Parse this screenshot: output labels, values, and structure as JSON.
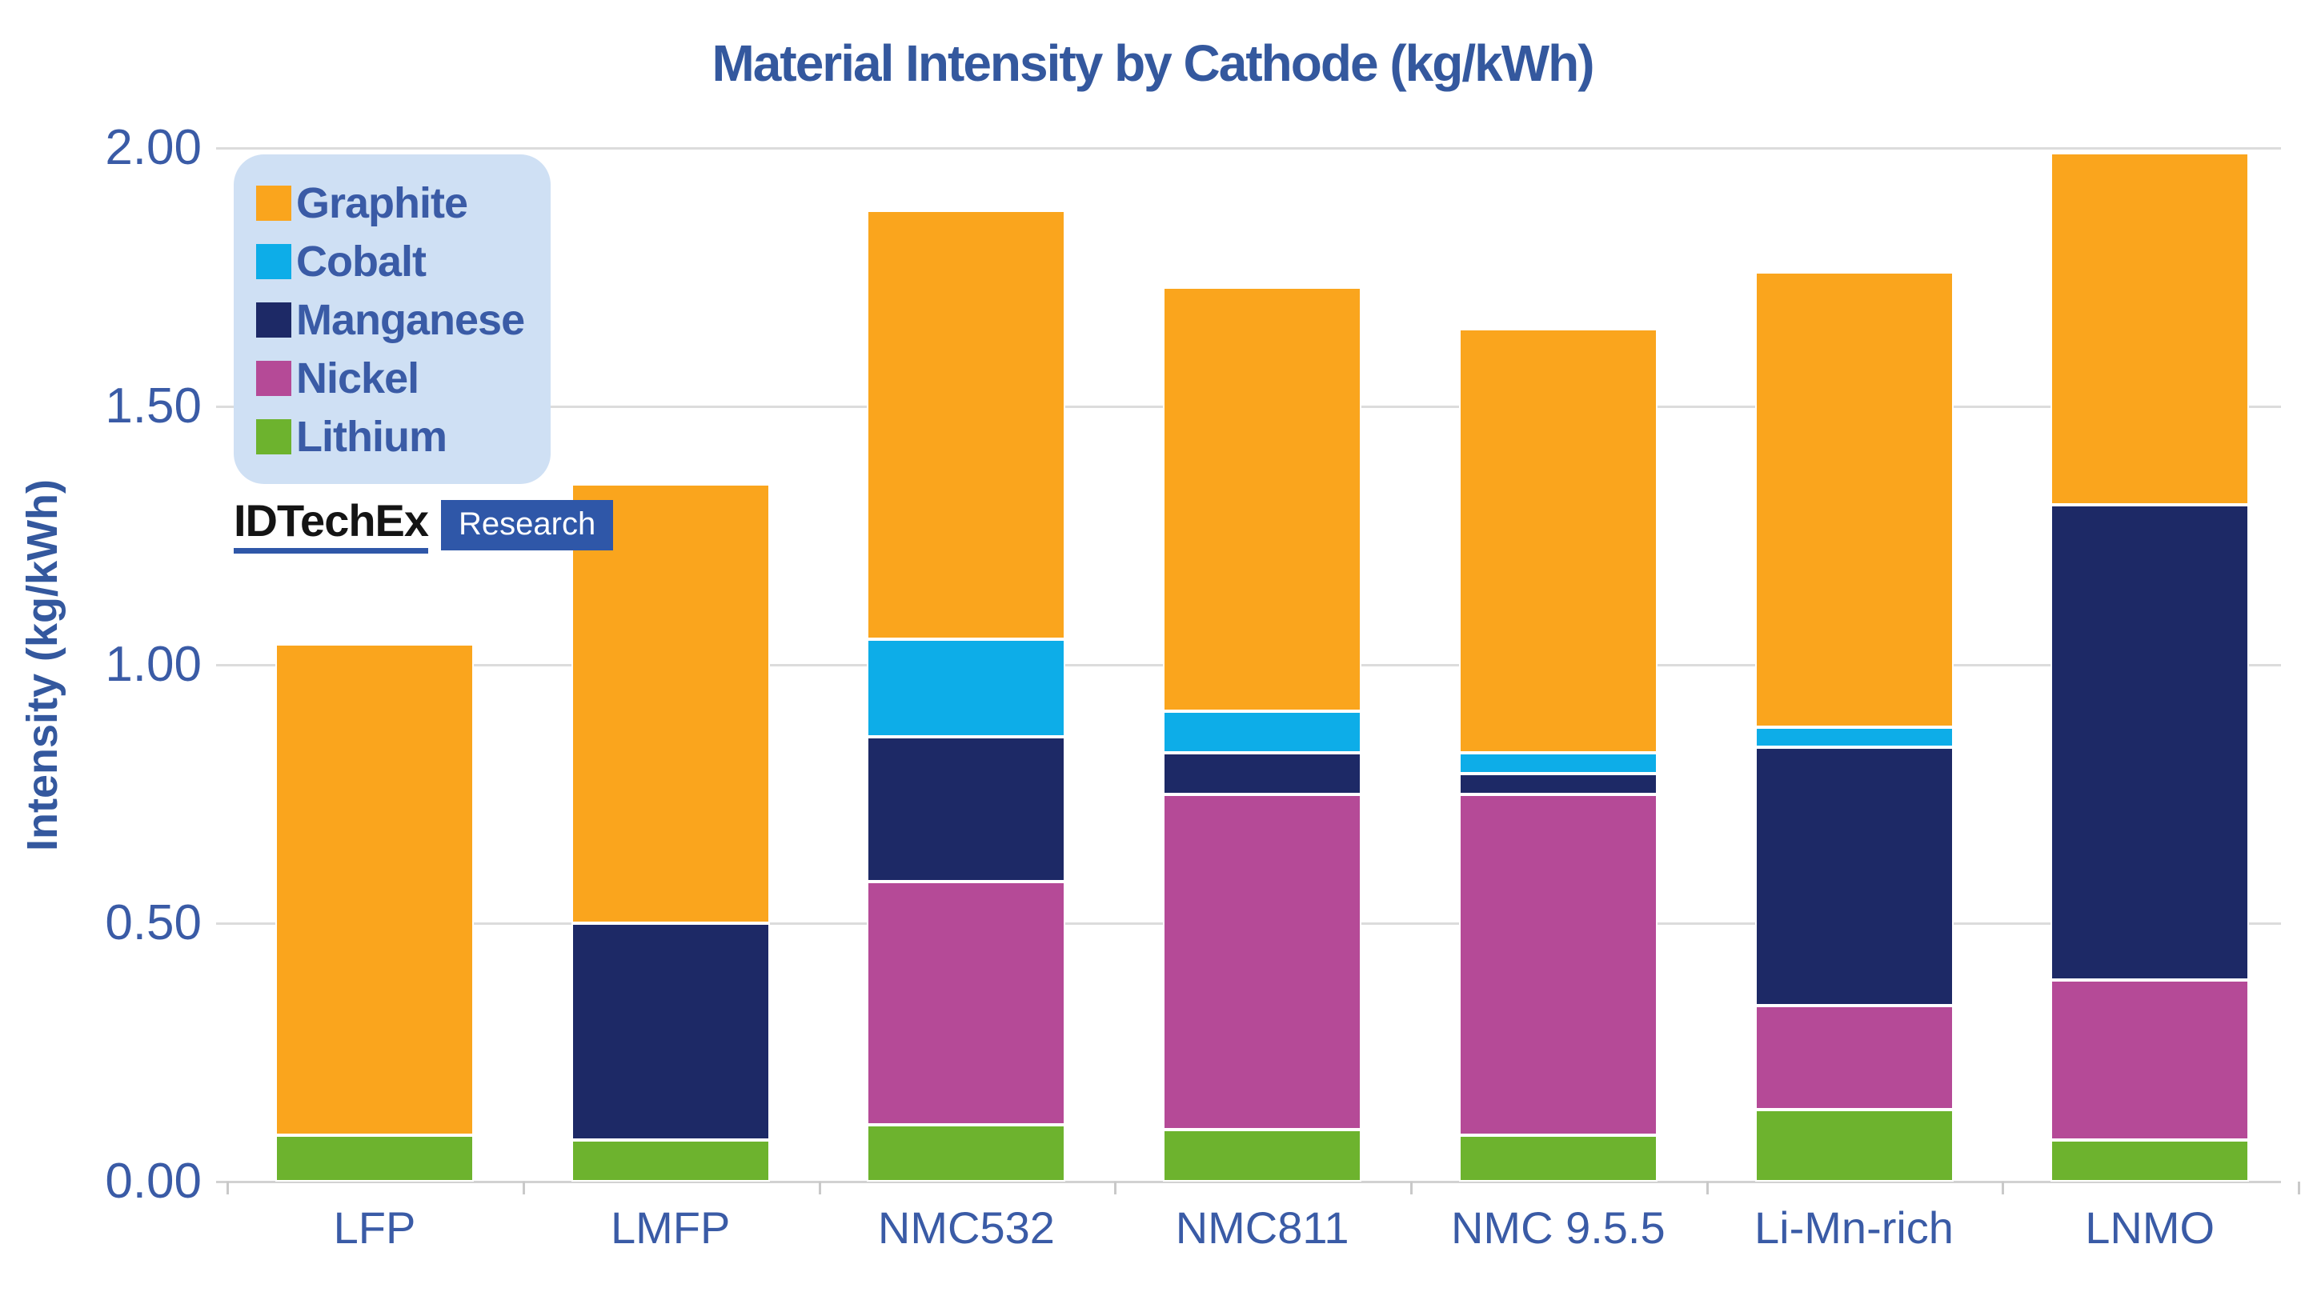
{
  "title": "Material Intensity by Cathode (kg/kWh)",
  "y_axis": {
    "label": "Intensity (kg/kWh)",
    "tick_labels": [
      "2.00",
      "1.50",
      "1.00",
      "0.50",
      "0.00"
    ],
    "tick_values": [
      2.0,
      1.5,
      1.0,
      0.5,
      0.0
    ]
  },
  "legend": {
    "items": [
      {
        "label": "Graphite",
        "color": "#FAA51D"
      },
      {
        "label": "Cobalt",
        "color": "#0DADE8"
      },
      {
        "label": "Manganese",
        "color": "#1D2966"
      },
      {
        "label": "Nickel",
        "color": "#B54A97"
      },
      {
        "label": "Lithium",
        "color": "#6DB32E"
      }
    ]
  },
  "logo": {
    "brand": "IDTechEx",
    "suffix": "Research"
  },
  "colors": {
    "title_text": "#34589E",
    "axis_text": "#3A5BA6",
    "gridline": "#DCDCDC",
    "legend_background": "#CFE0F4",
    "logo_accent": "#2F57A8",
    "segment_outline": "#FFFFFF"
  },
  "chart_data": {
    "type": "bar",
    "stacked": true,
    "title": "Material Intensity by Cathode (kg/kWh)",
    "xlabel": "",
    "ylabel": "Intensity (kg/kWh)",
    "ylim": [
      0,
      2.0
    ],
    "ytick_step": 0.5,
    "grid": true,
    "legend_position": "top-left",
    "categories": [
      "LFP",
      "LMFP",
      "NMC532",
      "NMC811",
      "NMC 9.5.5",
      "Li-Mn-rich",
      "LNMO"
    ],
    "stack_order_bottom_up": [
      "Lithium",
      "Nickel",
      "Manganese",
      "Cobalt",
      "Graphite"
    ],
    "series": [
      {
        "name": "Graphite",
        "color": "#FAA51D",
        "values": [
          0.95,
          0.85,
          0.83,
          0.82,
          0.82,
          0.88,
          0.68
        ]
      },
      {
        "name": "Cobalt",
        "color": "#0DADE8",
        "values": [
          0.0,
          0.0,
          0.19,
          0.08,
          0.04,
          0.04,
          0.0
        ]
      },
      {
        "name": "Manganese",
        "color": "#1D2966",
        "values": [
          0.0,
          0.42,
          0.28,
          0.08,
          0.04,
          0.5,
          0.92
        ]
      },
      {
        "name": "Nickel",
        "color": "#B54A97",
        "values": [
          0.0,
          0.0,
          0.47,
          0.65,
          0.66,
          0.2,
          0.31
        ]
      },
      {
        "name": "Lithium",
        "color": "#6DB32E",
        "values": [
          0.09,
          0.08,
          0.11,
          0.1,
          0.09,
          0.14,
          0.08
        ]
      }
    ],
    "totals": [
      1.04,
      1.35,
      1.88,
      1.73,
      1.65,
      1.76,
      1.99
    ]
  }
}
